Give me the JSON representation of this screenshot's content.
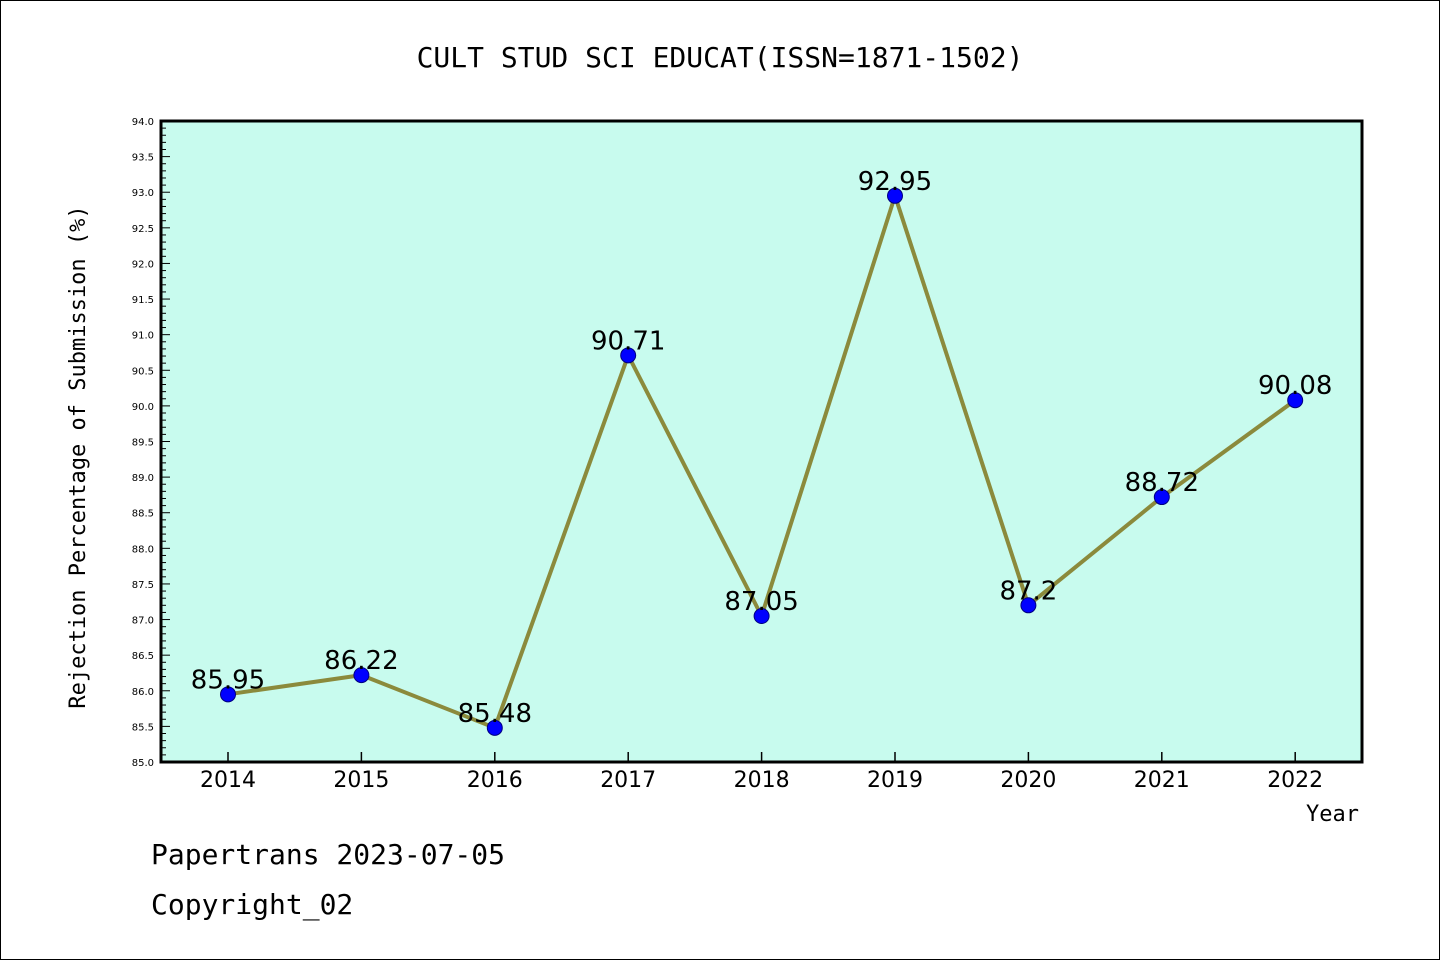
{
  "chart_data": {
    "type": "line",
    "title": "CULT STUD SCI EDUCAT(ISSN=1871-1502)",
    "xlabel": "Year",
    "ylabel": "Rejection Percentage of Submission (%)",
    "categories": [
      "2014",
      "2015",
      "2016",
      "2017",
      "2018",
      "2019",
      "2020",
      "2021",
      "2022"
    ],
    "series": [
      {
        "values": [
          85.95,
          86.22,
          85.48,
          90.71,
          87.05,
          92.95,
          87.2,
          88.72,
          90.08
        ],
        "data_labels": [
          "85.95",
          "86.22",
          "85.48",
          "90.71",
          "87.05",
          "92.95",
          "87.2",
          "88.72",
          "90.08"
        ]
      }
    ],
    "ylim": [
      85.0,
      94.0
    ],
    "yticks": [
      "85.0",
      "85.5",
      "86.0",
      "86.5",
      "87.0",
      "87.5",
      "88.0",
      "88.5",
      "89.0",
      "89.5",
      "90.0",
      "90.5",
      "91.0",
      "91.5",
      "92.0",
      "92.5",
      "93.0",
      "93.5",
      "94.0"
    ],
    "grid": false,
    "legend": "none",
    "colors": {
      "plot_background": "#c8fbee",
      "line": "#8b8a3c",
      "marker_fill": "#0000ff",
      "marker_stroke": "#000080"
    }
  },
  "footer": {
    "line1": "Papertrans 2023-07-05",
    "line2": "Copyright_02"
  }
}
